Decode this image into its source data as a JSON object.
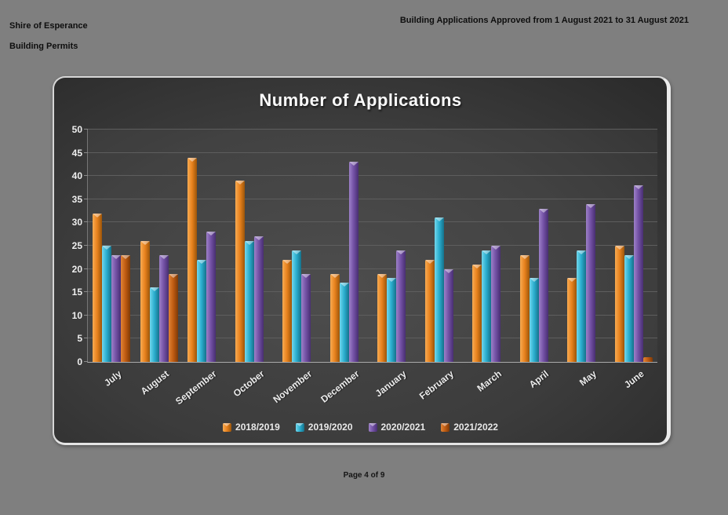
{
  "header": {
    "left_line1": "Shire of Esperance",
    "left_line2": "Building Permits",
    "right": "Building Applications Approved from 1 August 2021 to 31 August 2021"
  },
  "footer": {
    "page_label": "Page 4 of 9"
  },
  "chart_data": {
    "type": "bar",
    "title": "Number of Applications",
    "categories": [
      "July",
      "August",
      "September",
      "October",
      "November",
      "December",
      "January",
      "February",
      "March",
      "April",
      "May",
      "June"
    ],
    "series": [
      {
        "name": "2018/2019",
        "color": "#E8821E",
        "color_light": "#F8AB52",
        "color_dark": "#9C5509",
        "values": [
          32,
          26,
          44,
          39,
          22,
          19,
          19,
          22,
          21,
          23,
          18,
          25
        ]
      },
      {
        "name": "2019/2020",
        "color": "#2BAECF",
        "color_light": "#72D7EC",
        "color_dark": "#15718A",
        "values": [
          25,
          16,
          22,
          26,
          24,
          17,
          18,
          31,
          24,
          18,
          24,
          23
        ]
      },
      {
        "name": "2020/2021",
        "color": "#7351A5",
        "color_light": "#9D80C8",
        "color_dark": "#482E72",
        "values": [
          23,
          23,
          28,
          27,
          19,
          43,
          24,
          20,
          25,
          33,
          34,
          38
        ]
      },
      {
        "name": "2021/2022",
        "color": "#C05C12",
        "color_light": "#E08436",
        "color_dark": "#7E3A07",
        "values": [
          23,
          19,
          0,
          0,
          0,
          0,
          0,
          0,
          0,
          0,
          0,
          1
        ]
      }
    ],
    "ylim": [
      0,
      50
    ],
    "y_step": 5,
    "grid": true,
    "legend_position": "bottom",
    "colors": {
      "page_background": "#7F7F7F",
      "chart_background": "#3C3C3C",
      "gridline": "#5E5E5E",
      "axis_text": "#EFEFEF",
      "title_text": "#FAFAFA",
      "header_text": "#0E0E0E"
    }
  }
}
